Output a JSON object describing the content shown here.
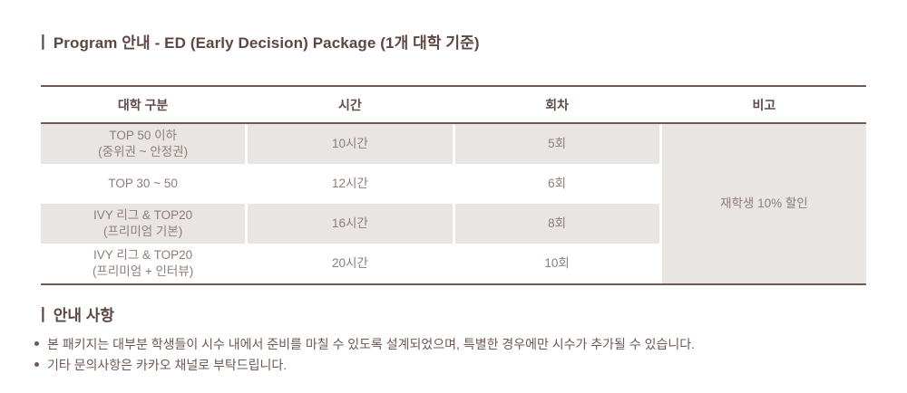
{
  "title": {
    "marker": "|",
    "text": "Program 안내 - ED (Early Decision) Package (1개 대학 기준)"
  },
  "table": {
    "headers": [
      "대학 구분",
      "시간",
      "회차",
      "비고"
    ],
    "rows": [
      {
        "category": "TOP 50 이하",
        "category_sub": "(중위권 ~ 안정권)",
        "hours": "10시간",
        "sessions": "5회"
      },
      {
        "category": "TOP 30 ~ 50",
        "category_sub": "",
        "hours": "12시간",
        "sessions": "6회"
      },
      {
        "category": "IVY 리그 & TOP20",
        "category_sub": "(프리미엄 기본)",
        "hours": "16시간",
        "sessions": "8회"
      },
      {
        "category": "IVY 리그 & TOP20",
        "category_sub": "(프리미엄 + 인터뷰)",
        "hours": "20시간",
        "sessions": "10회"
      }
    ],
    "note": "재학생 10% 할인"
  },
  "notice": {
    "marker": "|",
    "heading": "안내 사항",
    "bullets": [
      "본 패키지는 대부분 학생들이 시수 내에서 준비를 마칠 수 있도록 설계되었으며, 특별한 경우에만 시수가 추가될 수 있습니다.",
      "기타 문의사항은 카카오 채널로 부탁드립니다."
    ]
  },
  "colors": {
    "rule": "#6f5a54",
    "cell_shade": "#e9e5e3",
    "heading_text": "#5c4742",
    "cell_text": "#8d7d78",
    "body_text": "#6d5953",
    "background": "#ffffff"
  }
}
